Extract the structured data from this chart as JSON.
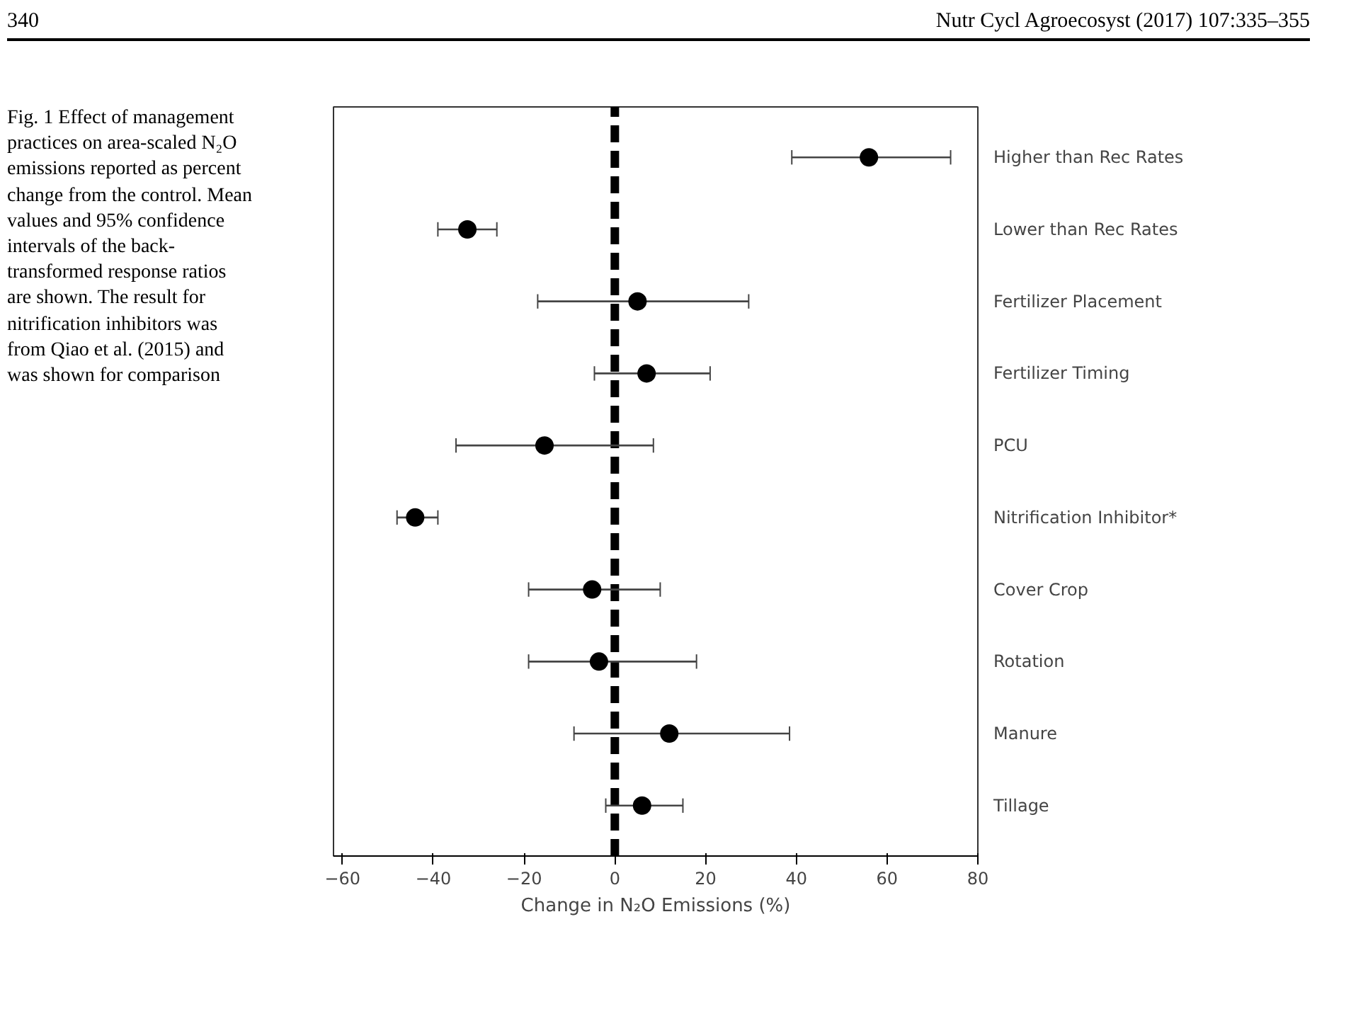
{
  "chart_data": {
    "type": "scatter",
    "orientation": "horizontal",
    "marker": "circle",
    "grid": false,
    "xlabel": "Change in N₂O Emissions (%)",
    "categories": [
      "Higher than Rec Rates",
      "Lower than Rec Rates",
      "Fertilizer Placement",
      "Fertilizer Timing",
      "PCU",
      "Nitrification Inhibitor*",
      "Cover Crop",
      "Rotation",
      "Manure",
      "Tillage"
    ],
    "values": [
      56,
      -32.5,
      5,
      7,
      -15.5,
      -44,
      -5,
      -3.5,
      12,
      6
    ],
    "color": "#000000",
    "errors": [
      [
        39,
        74
      ],
      [
        -39,
        -26
      ],
      [
        -17,
        29.5
      ],
      [
        -4.5,
        21
      ],
      [
        -35,
        8.5
      ],
      [
        -48,
        -39
      ],
      [
        -19,
        10
      ],
      [
        -19,
        18
      ],
      [
        -9,
        38.5
      ],
      [
        -2,
        15
      ]
    ],
    "xlim": [
      -62,
      80
    ],
    "xticks": [
      -60,
      -40,
      -20,
      0,
      20,
      40,
      60,
      80
    ],
    "ref_lines": [
      {
        "axis": "x",
        "value": 0,
        "label": null,
        "color": "#000000",
        "line_style": "dashed"
      }
    ],
    "annotations": [
      "340",
      "Nutr Cycl Agroecosyst (2017) 107:335–355",
      "Fig. 1 Effect of management practices on area-scaled N₂O emissions reported as percent change from the control. Mean values and 95% confidence intervals of the back-transformed response ratios are shown. The result for nitrification inhibitors was from Qiao et al. (2015) and was shown for comparison"
    ]
  }
}
